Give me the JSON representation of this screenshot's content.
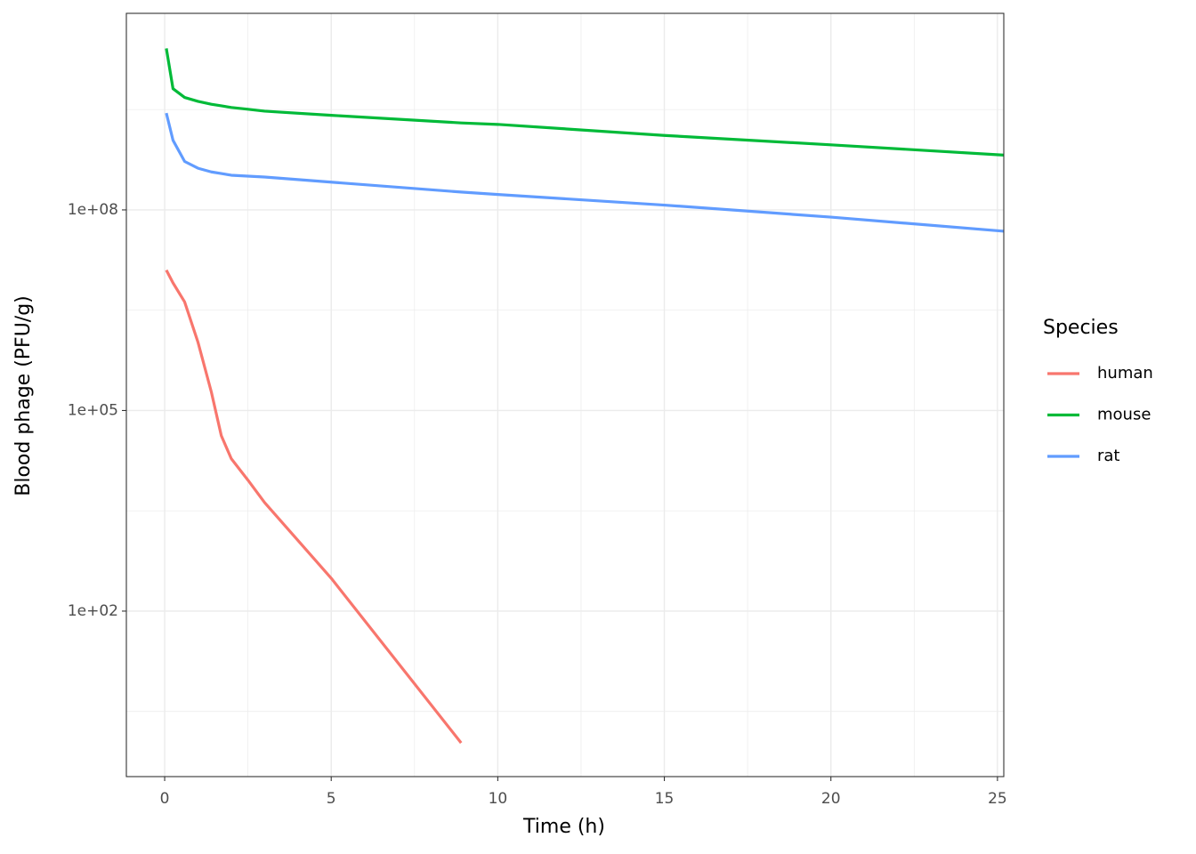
{
  "chart_data": {
    "type": "line",
    "x_label": "Time (h)",
    "y_label": "Blood phage (PFU/g)",
    "legend_title": "Species",
    "legend_position": "right",
    "grid": true,
    "ylog": true,
    "x": [
      0.05,
      0.25,
      0.6,
      1,
      1.4,
      1.7,
      2,
      2.5,
      3,
      5,
      8.9,
      10,
      15,
      20,
      25.2
    ],
    "series": [
      {
        "name": "human",
        "color": "#F8766D",
        "values": [
          12600000,
          8100000,
          4200000,
          1050000,
          190000,
          42000,
          19000,
          9100,
          4200,
          310,
          1.07,
          null,
          null,
          null,
          null
        ]
      },
      {
        "name": "mouse",
        "color": "#00BA38",
        "values": [
          26000000000,
          6500000000,
          4800000000,
          4200000000,
          3800000000,
          3600000000,
          3400000000,
          3200000000,
          3000000000,
          2600000000,
          2000000000,
          1900000000,
          1300000000,
          940000000,
          660000000
        ]
      },
      {
        "name": "rat",
        "color": "#619CFF",
        "values": [
          2800000000,
          1100000000,
          530000000,
          420000000,
          370000000,
          350000000,
          330000000,
          320000000,
          310000000,
          260000000,
          185000000,
          170000000,
          118000000,
          78000000,
          48000000
        ]
      }
    ],
    "xlim": [
      -1.15,
      25.19
    ],
    "xticks": [
      0,
      5,
      10,
      15,
      20,
      25
    ],
    "ylim": [
      0.335,
      87000000000
    ],
    "yticks": [
      {
        "value": 100,
        "label": "1e+02"
      },
      {
        "value": 100000,
        "label": "1e+05"
      },
      {
        "value": 100000000,
        "label": "1e+08"
      }
    ]
  }
}
